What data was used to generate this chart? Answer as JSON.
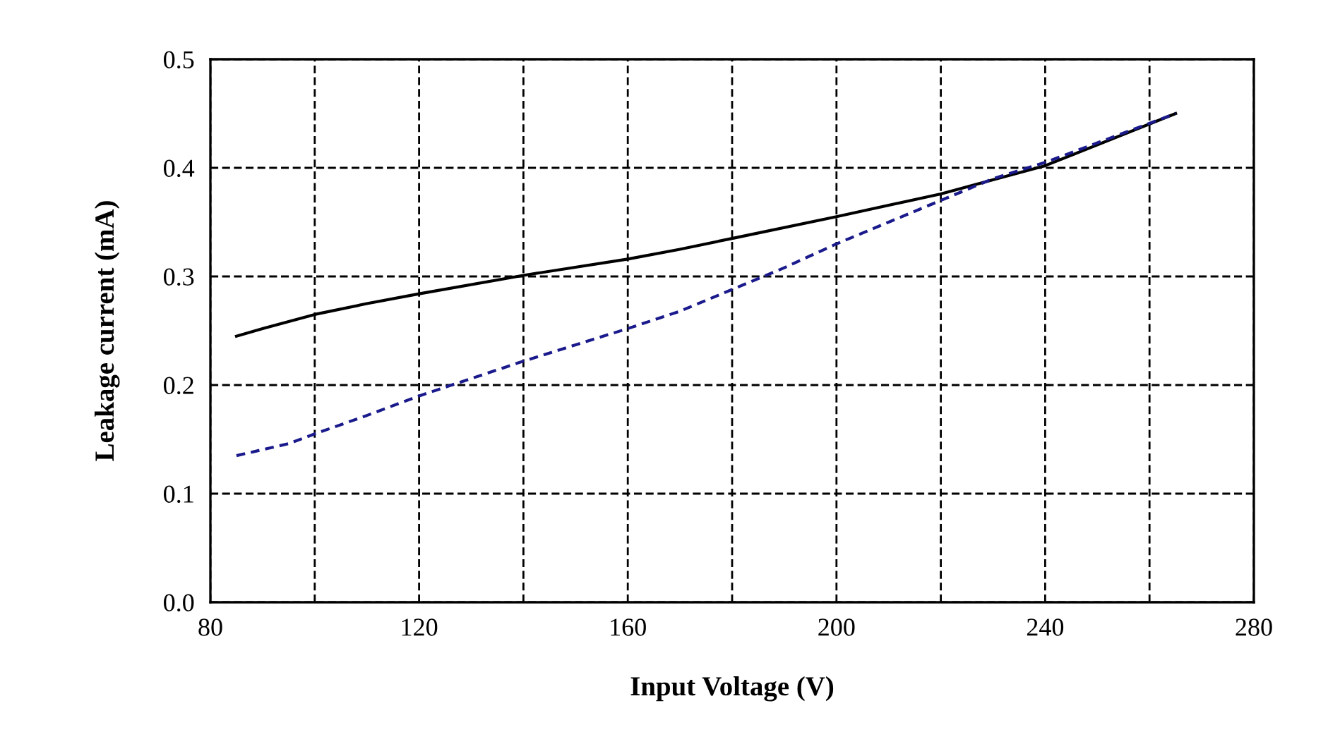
{
  "chart_data": {
    "type": "line",
    "xlabel": "Input Voltage (V)",
    "ylabel": "Leakage current (mA)",
    "xlim": [
      80,
      280
    ],
    "xticks": [
      80,
      {
        "value": 100,
        "label": null
      },
      120,
      {
        "value": 140,
        "label": null
      },
      160,
      {
        "value": 180,
        "label": null
      },
      200,
      {
        "value": 220,
        "label": null
      },
      240,
      {
        "value": 260,
        "label": null
      },
      280
    ],
    "ylim": [
      0,
      0.5
    ],
    "yticks": [
      {
        "value": 0,
        "label": "0.0"
      },
      0.1,
      0.2,
      0.3,
      0.4,
      0.5
    ],
    "grid": true,
    "marker": "none",
    "series": [
      {
        "color": "#000000",
        "line_style": "solid",
        "x": [
          85,
          90,
          100,
          110,
          120,
          140,
          160,
          170,
          180,
          200,
          220,
          240,
          265
        ],
        "values": [
          0.245,
          0.252,
          0.265,
          0.275,
          0.284,
          0.301,
          0.316,
          0.325,
          0.335,
          0.355,
          0.376,
          0.402,
          0.45
        ]
      },
      {
        "color": "#1a1a8c",
        "line_style": "dashed",
        "x": [
          85,
          95,
          100,
          110,
          120,
          140,
          160,
          170,
          180,
          190,
          200,
          220,
          230,
          240,
          265
        ],
        "values": [
          0.135,
          0.146,
          0.155,
          0.172,
          0.19,
          0.222,
          0.252,
          0.268,
          0.288,
          0.308,
          0.33,
          0.37,
          0.39,
          0.405,
          0.45
        ]
      }
    ]
  }
}
